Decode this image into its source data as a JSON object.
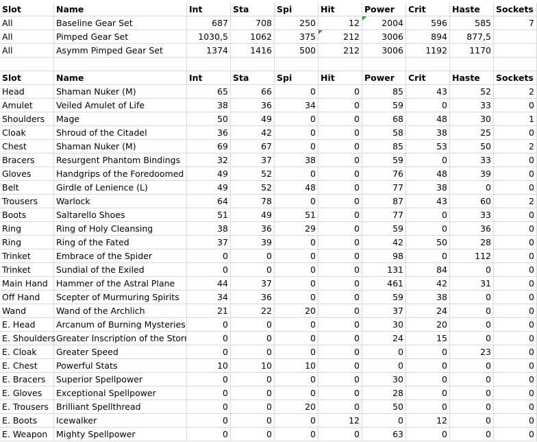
{
  "sheet": {
    "columns": [
      "Slot",
      "Name",
      "Int",
      "Sta",
      "Spi",
      "Hit",
      "Power",
      "Crit",
      "Haste",
      "Sockets"
    ],
    "summary_rows": [
      [
        "All",
        "Baseline Gear Set",
        "687",
        "708",
        "250",
        "12",
        "2004",
        "596",
        "585",
        "7"
      ],
      [
        "All",
        "Pimped Gear Set",
        "1030,5",
        "1062",
        "375",
        "212",
        "3006",
        "894",
        "877,5",
        ""
      ],
      [
        "All",
        "Asymm Pimped Gear Set",
        "1374",
        "1416",
        "500",
        "212",
        "3006",
        "1192",
        "1170",
        ""
      ]
    ],
    "detail_rows": [
      [
        "Head",
        "Shaman Nuker (M)",
        "65",
        "66",
        "0",
        "0",
        "85",
        "43",
        "52",
        "2"
      ],
      [
        "Amulet",
        "Veiled Amulet of Life",
        "38",
        "36",
        "34",
        "0",
        "59",
        "0",
        "33",
        "0"
      ],
      [
        "Shoulders",
        "Mage",
        "50",
        "49",
        "0",
        "0",
        "68",
        "48",
        "30",
        "1"
      ],
      [
        "Cloak",
        "Shroud of the Citadel",
        "36",
        "42",
        "0",
        "0",
        "58",
        "38",
        "25",
        "0"
      ],
      [
        "Chest",
        "Shaman Nuker (M)",
        "69",
        "67",
        "0",
        "0",
        "85",
        "53",
        "50",
        "2"
      ],
      [
        "Bracers",
        "Resurgent Phantom Bindings",
        "32",
        "37",
        "38",
        "0",
        "59",
        "0",
        "33",
        "0"
      ],
      [
        "Gloves",
        "Handgrips of the Foredoomed (",
        "49",
        "52",
        "0",
        "0",
        "76",
        "48",
        "39",
        "0"
      ],
      [
        "Belt",
        "Girdle of Lenience (L)",
        "49",
        "52",
        "48",
        "0",
        "77",
        "38",
        "0",
        "0"
      ],
      [
        "Trousers",
        "Warlock",
        "64",
        "78",
        "0",
        "0",
        "87",
        "43",
        "60",
        "2"
      ],
      [
        "Boots",
        "Saltarello Shoes",
        "51",
        "49",
        "51",
        "0",
        "77",
        "0",
        "33",
        "0"
      ],
      [
        "Ring",
        "Ring of Holy Cleansing",
        "38",
        "36",
        "29",
        "0",
        "59",
        "0",
        "36",
        "0"
      ],
      [
        "Ring",
        "Ring of the Fated",
        "37",
        "39",
        "0",
        "0",
        "42",
        "50",
        "28",
        "0"
      ],
      [
        "Trinket",
        "Embrace of the Spider",
        "0",
        "0",
        "0",
        "0",
        "98",
        "0",
        "112",
        "0"
      ],
      [
        "Trinket",
        "Sundial of the Exiled",
        "0",
        "0",
        "0",
        "0",
        "131",
        "84",
        "0",
        "0"
      ],
      [
        "Main Hand",
        "Hammer of the Astral Plane",
        "44",
        "37",
        "0",
        "0",
        "461",
        "42",
        "31",
        "0"
      ],
      [
        "Off Hand",
        "Scepter of Murmuring Spirits",
        "34",
        "36",
        "0",
        "0",
        "59",
        "38",
        "0",
        "0"
      ],
      [
        "Wand",
        "Wand of the Archlich",
        "21",
        "22",
        "20",
        "0",
        "37",
        "24",
        "0",
        "0"
      ],
      [
        "E. Head",
        "Arcanum of Burning Mysteries",
        "0",
        "0",
        "0",
        "0",
        "30",
        "20",
        "0",
        "0"
      ],
      [
        "E. Shoulders",
        "Greater Inscription of the Storm",
        "0",
        "0",
        "0",
        "0",
        "24",
        "15",
        "0",
        "0"
      ],
      [
        "E. Cloak",
        "Greater Speed",
        "0",
        "0",
        "0",
        "0",
        "0",
        "0",
        "23",
        "0"
      ],
      [
        "E. Chest",
        "Powerful Stats",
        "10",
        "10",
        "10",
        "0",
        "0",
        "0",
        "0",
        "0"
      ],
      [
        "E. Bracers",
        "Superior Spellpower",
        "0",
        "0",
        "0",
        "0",
        "30",
        "0",
        "0",
        "0"
      ],
      [
        "E. Gloves",
        "Exceptional Spellpower",
        "0",
        "0",
        "0",
        "0",
        "28",
        "0",
        "0",
        "0"
      ],
      [
        "E. Trousers",
        "Brilliant Spellthread",
        "0",
        "0",
        "20",
        "0",
        "50",
        "0",
        "0",
        "0"
      ],
      [
        "E. Boots",
        "Icewalker",
        "0",
        "0",
        "0",
        "12",
        "0",
        "12",
        "0",
        "0"
      ],
      [
        "E. Weapon",
        "Mighty Spellpower",
        "0",
        "0",
        "0",
        "0",
        "63",
        "0",
        "0",
        "0"
      ]
    ]
  }
}
